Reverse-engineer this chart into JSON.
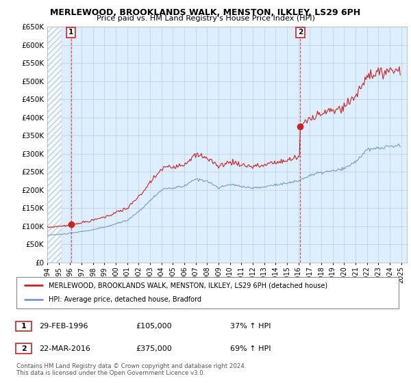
{
  "title": "MERLEWOOD, BROOKLANDS WALK, MENSTON, ILKLEY, LS29 6PH",
  "subtitle": "Price paid vs. HM Land Registry's House Price Index (HPI)",
  "ytick_values": [
    0,
    50000,
    100000,
    150000,
    200000,
    250000,
    300000,
    350000,
    400000,
    450000,
    500000,
    550000,
    600000,
    650000
  ],
  "ylim": [
    0,
    650000
  ],
  "xlim_start": 1994.0,
  "xlim_end": 2025.5,
  "chart_bg_color": "#ddeeff",
  "hpi_color": "#7799cc",
  "price_color": "#cc2222",
  "grid_color": "#b8cce4",
  "sale1_year": 1996.15,
  "sale1_price": 105000,
  "sale2_year": 2016.21,
  "sale2_price": 375000,
  "vline_color": "#cc2222",
  "legend_label1": "MERLEWOOD, BROOKLANDS WALK, MENSTON, ILKLEY, LS29 6PH (detached house)",
  "legend_label2": "HPI: Average price, detached house, Bradford",
  "footer": "Contains HM Land Registry data © Crown copyright and database right 2024.\nThis data is licensed under the Open Government Licence v3.0."
}
